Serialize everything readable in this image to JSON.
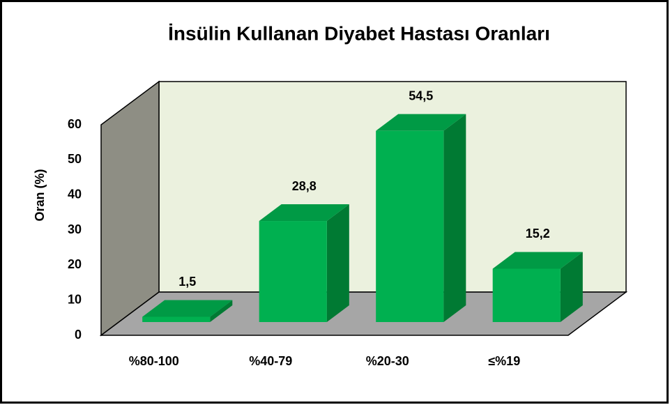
{
  "chart_data": {
    "type": "bar3d",
    "title": "İnsülin Kullanan Diyabet Hastası Oranları",
    "y_label": "Oran (%)",
    "categories": [
      "%80-100",
      "%40-79",
      "%20-30",
      "≤%19"
    ],
    "values": [
      1.5,
      28.8,
      54.5,
      15.2
    ],
    "value_labels": [
      "1,5",
      "28,8",
      "54,5",
      "15,2"
    ],
    "color": "#00b050",
    "ylim": [
      0,
      60
    ],
    "yticks": [
      0,
      10,
      20,
      30,
      40,
      50,
      60
    ]
  }
}
